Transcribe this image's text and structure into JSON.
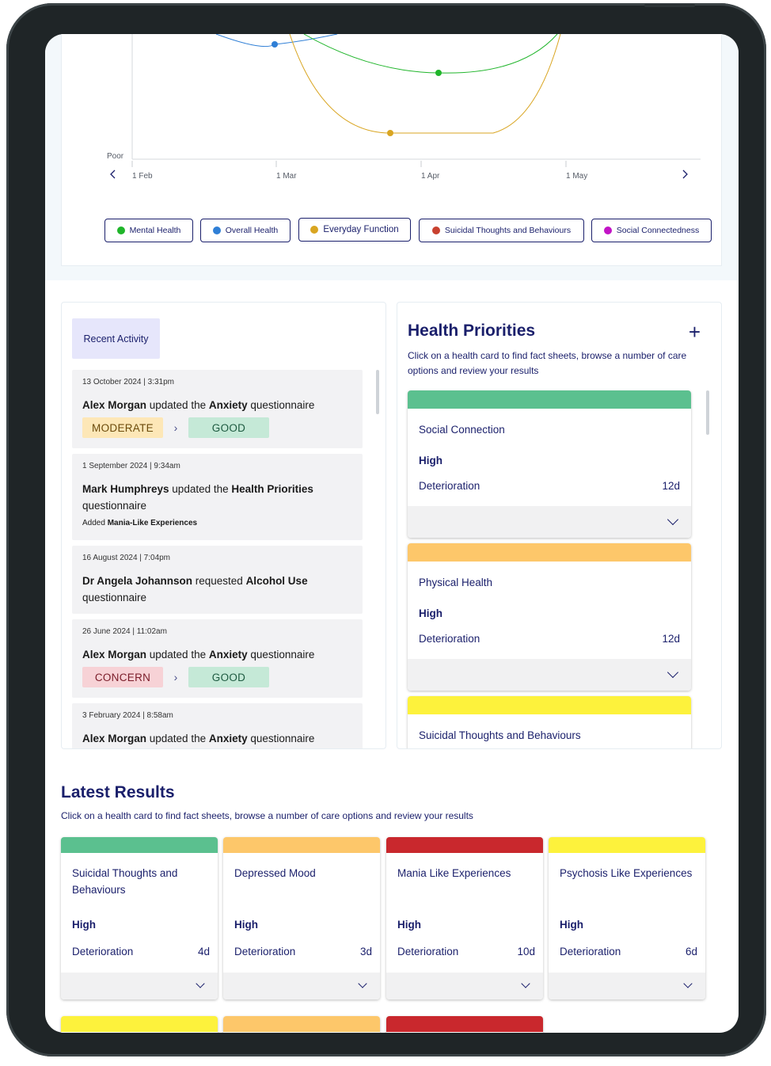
{
  "chart": {
    "y_label_poor": "Poor",
    "x_ticks": [
      "1 Feb",
      "1 Mar",
      "1 Apr",
      "1 May"
    ],
    "prev_icon": "chevron-left-icon",
    "next_icon": "chevron-right-icon"
  },
  "legend": [
    {
      "label": "Mental Health",
      "color": "#1fb52a"
    },
    {
      "label": "Overall Health",
      "color": "#2f7fd6"
    },
    {
      "label": "Everyday Function",
      "color": "#d9a521"
    },
    {
      "label": "Suicidal Thoughts and Behaviours",
      "color": "#c8412f"
    },
    {
      "label": "Social Connectedness",
      "color": "#c214c6"
    }
  ],
  "recent_activity": {
    "tab_label": "Recent Activity",
    "items": [
      {
        "date": "13 October 2024 | 3:31pm",
        "actor": "Alex Morgan",
        "verb": " updated the ",
        "subject": "Anxiety",
        "suffix": " questionnaire",
        "from": "MODERATE",
        "to": "GOOD"
      },
      {
        "date": "1 September 2024 | 9:34am",
        "actor": "Mark Humphreys",
        "verb": " updated the ",
        "subject": "Health Priorities",
        "suffix": " questionnaire",
        "added_prefix": "Added ",
        "added": "Mania-Like Experiences"
      },
      {
        "date": "16 August 2024 | 7:04pm",
        "actor": "Dr Angela Johannson",
        "verb": " requested ",
        "subject": "Alcohol Use",
        "suffix": " questionnaire"
      },
      {
        "date": "26 June 2024 | 11:02am",
        "actor": "Alex Morgan",
        "verb": " updated the ",
        "subject": "Anxiety",
        "suffix": " questionnaire",
        "from": "CONCERN",
        "to": "GOOD"
      },
      {
        "date": "3 February 2024 | 8:58am",
        "actor": "Alex Morgan",
        "verb": " updated the ",
        "subject": "Anxiety",
        "suffix": " questionnaire"
      }
    ]
  },
  "health_priorities": {
    "title": "Health Priorities",
    "add_icon": "plus-icon",
    "description": "Click on a health card to find fact sheets, browse a number of care options and review your results",
    "cards": [
      {
        "name": "Social Connection",
        "level": "High",
        "trend": "Deterioration",
        "days": "12d",
        "color": "#5bc08f"
      },
      {
        "name": "Physical Health",
        "level": "High",
        "trend": "Deterioration",
        "days": "12d",
        "color": "#fdc76a"
      },
      {
        "name": "Suicidal Thoughts and Behaviours",
        "color": "#fdf23c"
      }
    ]
  },
  "latest_results": {
    "title": "Latest Results",
    "description": "Click on a health card to find fact sheets, browse a number of care options and review your results",
    "cards": [
      {
        "name": "Suicidal Thoughts and Behaviours",
        "level": "High",
        "trend": "Deterioration",
        "days": "4d",
        "color": "#5bc08f"
      },
      {
        "name": "Depressed Mood",
        "level": "High",
        "trend": "Deterioration",
        "days": "3d",
        "color": "#fdc76a"
      },
      {
        "name": "Mania Like Experiences",
        "level": "High",
        "trend": "Deterioration",
        "days": "10d",
        "color": "#c9282d"
      },
      {
        "name": "Psychosis Like Experiences",
        "level": "High",
        "trend": "Deterioration",
        "days": "6d",
        "color": "#fdf23c"
      }
    ],
    "next_row_colors": [
      "#fdf23c",
      "#fdc76a",
      "#c9282d"
    ]
  }
}
